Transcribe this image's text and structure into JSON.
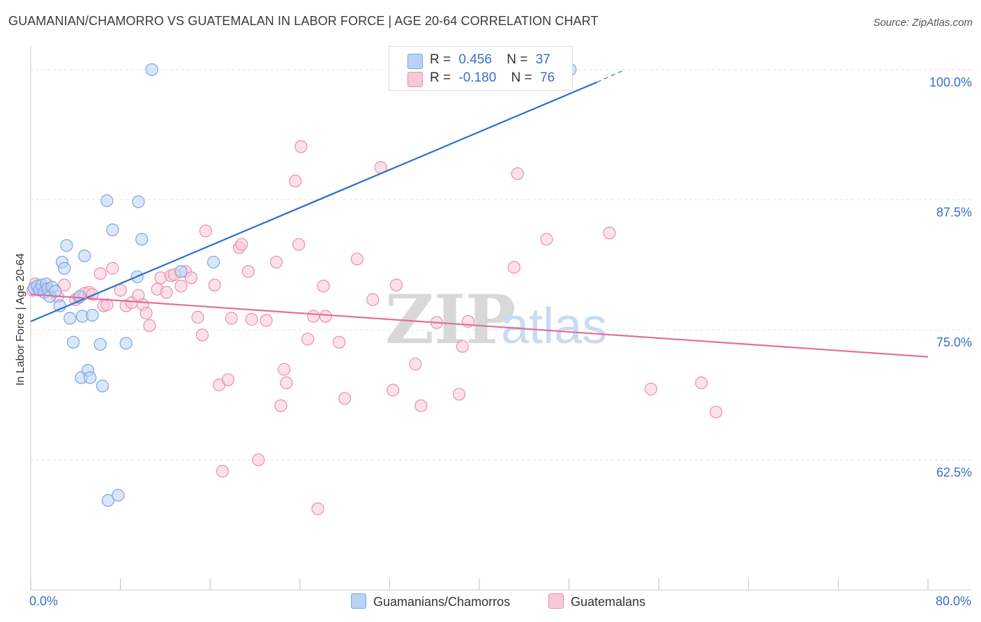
{
  "header": {
    "title": "GUAMANIAN/CHAMORRO VS GUATEMALAN IN LABOR FORCE | AGE 20-64 CORRELATION CHART",
    "source": "Source: ZipAtlas.com"
  },
  "legend": {
    "rows": [
      {
        "r_label": "R =",
        "r_value": "0.456",
        "n_label": "N =",
        "n_value": "37"
      },
      {
        "r_label": "R =",
        "r_value": "-0.180",
        "n_label": "N =",
        "n_value": "76"
      }
    ]
  },
  "watermark": {
    "zip": "ZIP",
    "atlas": "atlas"
  },
  "colors": {
    "series1_fill": "#b9d3f5",
    "series1_stroke": "#7aa6e0",
    "series1_line": "#2a6fcc",
    "series2_fill": "#f8c8d8",
    "series2_stroke": "#e98fae",
    "series2_line": "#e0709b",
    "axis_label": "#3b6fc4",
    "grid": "#e2e2e2"
  },
  "chart_data": {
    "type": "scatter",
    "title": "GUAMANIAN/CHAMORRO VS GUATEMALAN IN LABOR FORCE | AGE 20-64 CORRELATION CHART",
    "ylabel": "In Labor Force | Age 20-64",
    "xlabel": "",
    "xlim": [
      0,
      80
    ],
    "ylim": [
      50,
      102
    ],
    "x_tick_labels": [
      "0.0%",
      "80.0%"
    ],
    "y_ticks": [
      {
        "value": 62.5,
        "label": "62.5%"
      },
      {
        "value": 75.0,
        "label": "75.0%"
      },
      {
        "value": 87.5,
        "label": "87.5%"
      },
      {
        "value": 100.0,
        "label": "100.0%"
      }
    ],
    "grid": "horizontal dashed",
    "legend_position": "top-center",
    "series": [
      {
        "name": "Guamanians/Chamorros",
        "R": 0.456,
        "N": 37,
        "trend": {
          "x0": 0,
          "y0": 75.8,
          "x1": 50.5,
          "y1": 98.8,
          "dash_to_x": 53,
          "dash_to_y": 100.0
        },
        "points": [
          [
            0.3,
            79.0
          ],
          [
            0.6,
            79.2
          ],
          [
            0.8,
            78.8
          ],
          [
            1.0,
            79.3
          ],
          [
            1.2,
            78.6
          ],
          [
            1.4,
            79.4
          ],
          [
            1.5,
            78.9
          ],
          [
            1.7,
            78.2
          ],
          [
            1.9,
            79.1
          ],
          [
            2.2,
            78.7
          ],
          [
            2.6,
            77.3
          ],
          [
            2.8,
            81.5
          ],
          [
            3.0,
            80.9
          ],
          [
            3.2,
            83.1
          ],
          [
            3.5,
            76.1
          ],
          [
            3.8,
            73.8
          ],
          [
            4.4,
            78.2
          ],
          [
            4.5,
            70.4
          ],
          [
            4.6,
            76.3
          ],
          [
            4.8,
            82.1
          ],
          [
            5.1,
            71.1
          ],
          [
            5.3,
            70.4
          ],
          [
            5.5,
            76.4
          ],
          [
            6.2,
            73.6
          ],
          [
            6.4,
            69.6
          ],
          [
            6.8,
            87.4
          ],
          [
            6.9,
            58.6
          ],
          [
            7.3,
            84.6
          ],
          [
            7.8,
            59.1
          ],
          [
            8.5,
            73.7
          ],
          [
            9.5,
            80.1
          ],
          [
            9.6,
            87.3
          ],
          [
            9.9,
            83.7
          ],
          [
            10.8,
            100.0
          ],
          [
            13.4,
            80.6
          ],
          [
            16.3,
            81.5
          ],
          [
            48.1,
            100.0
          ]
        ]
      },
      {
        "name": "Guatemalans",
        "R": -0.18,
        "N": 76,
        "trend": {
          "x0": 0,
          "y0": 78.4,
          "x1": 80,
          "y1": 72.4
        },
        "points": [
          [
            0.2,
            78.8
          ],
          [
            0.4,
            79.4
          ],
          [
            0.7,
            78.9
          ],
          [
            1.1,
            79.0
          ],
          [
            2.4,
            78.2
          ],
          [
            3.0,
            79.3
          ],
          [
            4.0,
            77.9
          ],
          [
            4.3,
            78.1
          ],
          [
            4.8,
            78.5
          ],
          [
            5.2,
            78.6
          ],
          [
            5.5,
            78.4
          ],
          [
            6.2,
            80.4
          ],
          [
            6.5,
            77.3
          ],
          [
            6.8,
            77.4
          ],
          [
            7.3,
            80.9
          ],
          [
            8.0,
            78.8
          ],
          [
            8.5,
            77.3
          ],
          [
            9.0,
            77.6
          ],
          [
            9.6,
            78.3
          ],
          [
            10.0,
            77.4
          ],
          [
            10.3,
            76.6
          ],
          [
            10.6,
            75.4
          ],
          [
            11.3,
            78.9
          ],
          [
            11.6,
            80.0
          ],
          [
            12.1,
            78.6
          ],
          [
            12.5,
            80.2
          ],
          [
            12.8,
            80.3
          ],
          [
            13.4,
            79.2
          ],
          [
            13.8,
            80.6
          ],
          [
            14.3,
            80.0
          ],
          [
            14.9,
            76.2
          ],
          [
            15.3,
            74.5
          ],
          [
            15.6,
            84.5
          ],
          [
            16.4,
            79.3
          ],
          [
            16.8,
            69.7
          ],
          [
            17.1,
            61.4
          ],
          [
            17.6,
            70.2
          ],
          [
            17.9,
            76.1
          ],
          [
            18.6,
            82.9
          ],
          [
            18.8,
            83.2
          ],
          [
            19.4,
            80.6
          ],
          [
            19.7,
            76.0
          ],
          [
            20.3,
            62.5
          ],
          [
            21.9,
            81.5
          ],
          [
            22.3,
            67.7
          ],
          [
            22.6,
            71.2
          ],
          [
            22.8,
            69.9
          ],
          [
            23.6,
            89.3
          ],
          [
            23.9,
            83.2
          ],
          [
            24.1,
            92.6
          ],
          [
            24.7,
            74.1
          ],
          [
            25.2,
            76.3
          ],
          [
            25.6,
            57.8
          ],
          [
            26.1,
            79.2
          ],
          [
            26.3,
            76.3
          ],
          [
            27.5,
            73.8
          ],
          [
            28.0,
            68.4
          ],
          [
            29.1,
            81.8
          ],
          [
            30.5,
            77.9
          ],
          [
            31.2,
            90.6
          ],
          [
            32.3,
            69.2
          ],
          [
            32.6,
            79.3
          ],
          [
            34.3,
            71.7
          ],
          [
            34.8,
            67.7
          ],
          [
            36.2,
            75.7
          ],
          [
            38.2,
            68.8
          ],
          [
            38.5,
            73.4
          ],
          [
            43.1,
            81.0
          ],
          [
            43.4,
            90.0
          ],
          [
            46.0,
            83.7
          ],
          [
            51.6,
            84.3
          ],
          [
            55.3,
            69.3
          ],
          [
            59.8,
            69.9
          ],
          [
            61.1,
            67.1
          ],
          [
            39.0,
            75.8
          ],
          [
            21.0,
            75.9
          ]
        ]
      }
    ]
  },
  "bottom_legend": {
    "items": [
      "Guamanians/Chamorros",
      "Guatemalans"
    ]
  }
}
